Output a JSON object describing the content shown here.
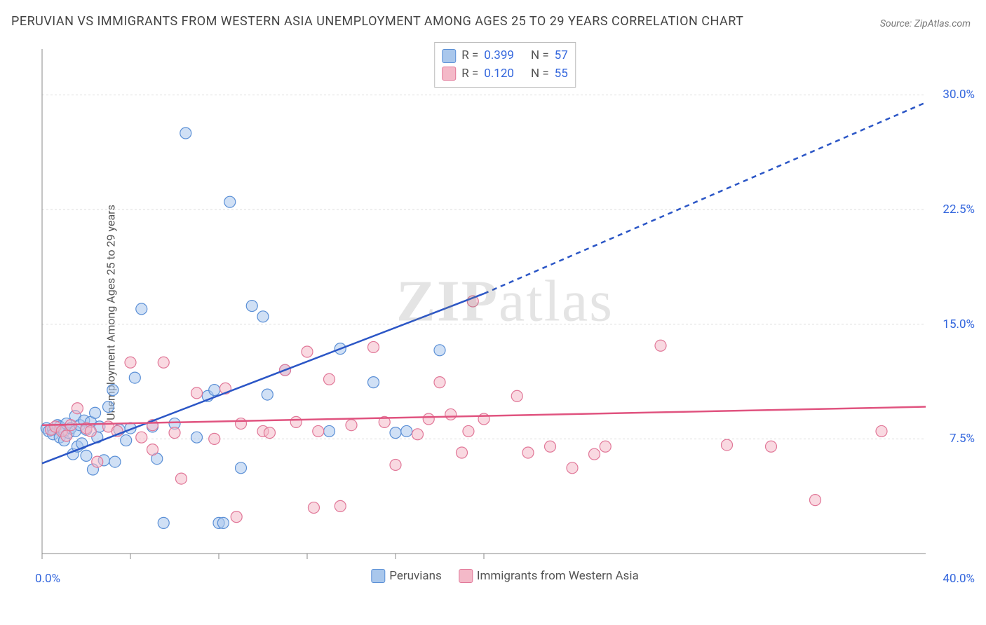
{
  "title": "PERUVIAN VS IMMIGRANTS FROM WESTERN ASIA UNEMPLOYMENT AMONG AGES 25 TO 29 YEARS CORRELATION CHART",
  "source": "Source: ZipAtlas.com",
  "ylabel": "Unemployment Among Ages 25 to 29 years",
  "watermark_bold": "ZIP",
  "watermark_rest": "atlas",
  "chart": {
    "type": "scatter",
    "background_color": "#ffffff",
    "grid_color": "#dddddd",
    "axis_color": "#888888",
    "xlim": [
      0,
      40
    ],
    "ylim": [
      0,
      33
    ],
    "x_axis_label_left": "0.0%",
    "x_axis_label_right": "40.0%",
    "x_ticks": [
      0,
      4,
      8,
      12,
      16,
      20
    ],
    "y_ticks": [
      {
        "pos": 7.5,
        "label": "7.5%"
      },
      {
        "pos": 15.0,
        "label": "15.0%"
      },
      {
        "pos": 22.5,
        "label": "22.5%"
      },
      {
        "pos": 30.0,
        "label": "30.0%"
      }
    ],
    "legend_stats": [
      {
        "swatch_fill": "#a9c7ec",
        "swatch_stroke": "#5a8fd6",
        "r_label": "R =",
        "r_val": "0.399",
        "n_label": "N =",
        "n_val": "57"
      },
      {
        "swatch_fill": "#f4b9c8",
        "swatch_stroke": "#e17798",
        "r_label": "R =",
        "r_val": "0.120",
        "n_label": "N =",
        "n_val": "55"
      }
    ],
    "bottom_legend": [
      {
        "swatch_fill": "#a9c7ec",
        "swatch_stroke": "#5a8fd6",
        "label": "Peruvians"
      },
      {
        "swatch_fill": "#f4b9c8",
        "swatch_stroke": "#e17798",
        "label": "Immigrants from Western Asia"
      }
    ],
    "series": [
      {
        "name": "Peruvians",
        "marker_fill": "rgba(169,199,236,0.55)",
        "marker_stroke": "#5a8fd6",
        "marker_radius": 8,
        "trend_color": "#2b56c6",
        "trend_width": 2.5,
        "trend_solid": {
          "x1": 0,
          "y1": 5.9,
          "x2": 20,
          "y2": 17.0
        },
        "trend_dash": {
          "x1": 20,
          "y1": 17.0,
          "x2": 40,
          "y2": 29.5
        },
        "points": [
          [
            0.2,
            8.2
          ],
          [
            0.3,
            8.0
          ],
          [
            0.5,
            8.1
          ],
          [
            0.5,
            7.8
          ],
          [
            0.7,
            8.4
          ],
          [
            0.8,
            7.6
          ],
          [
            0.8,
            8.3
          ],
          [
            1.0,
            8.0
          ],
          [
            1.0,
            7.4
          ],
          [
            1.1,
            8.5
          ],
          [
            1.2,
            7.9
          ],
          [
            1.3,
            8.2
          ],
          [
            1.4,
            6.5
          ],
          [
            1.5,
            8.0
          ],
          [
            1.5,
            9.0
          ],
          [
            1.6,
            7.0
          ],
          [
            1.7,
            8.4
          ],
          [
            1.8,
            7.2
          ],
          [
            1.9,
            8.7
          ],
          [
            2.0,
            8.1
          ],
          [
            2.0,
            6.4
          ],
          [
            2.2,
            8.6
          ],
          [
            2.3,
            5.5
          ],
          [
            2.4,
            9.2
          ],
          [
            2.5,
            7.6
          ],
          [
            2.6,
            8.3
          ],
          [
            2.8,
            6.1
          ],
          [
            3.0,
            9.6
          ],
          [
            3.2,
            10.7
          ],
          [
            3.3,
            6.0
          ],
          [
            3.5,
            8.1
          ],
          [
            3.8,
            7.4
          ],
          [
            4.0,
            8.2
          ],
          [
            4.2,
            11.5
          ],
          [
            4.5,
            16.0
          ],
          [
            5.0,
            8.3
          ],
          [
            5.2,
            6.2
          ],
          [
            5.5,
            2.0
          ],
          [
            6.0,
            8.5
          ],
          [
            6.5,
            27.5
          ],
          [
            7.0,
            7.6
          ],
          [
            7.5,
            10.3
          ],
          [
            7.8,
            10.7
          ],
          [
            8.0,
            2.0
          ],
          [
            8.2,
            2.0
          ],
          [
            8.5,
            23.0
          ],
          [
            9.0,
            5.6
          ],
          [
            9.5,
            16.2
          ],
          [
            10.0,
            15.5
          ],
          [
            10.2,
            10.4
          ],
          [
            11.0,
            12.0
          ],
          [
            13.0,
            8.0
          ],
          [
            13.5,
            13.4
          ],
          [
            15.0,
            11.2
          ],
          [
            16.0,
            7.9
          ],
          [
            16.5,
            8.0
          ],
          [
            18.0,
            13.3
          ]
        ]
      },
      {
        "name": "Immigrants from Western Asia",
        "marker_fill": "rgba(244,185,200,0.55)",
        "marker_stroke": "#e17798",
        "marker_radius": 8,
        "trend_color": "#e0537f",
        "trend_width": 2.5,
        "trend_solid": {
          "x1": 0,
          "y1": 8.4,
          "x2": 40,
          "y2": 9.6
        },
        "points": [
          [
            0.4,
            8.1
          ],
          [
            0.6,
            8.3
          ],
          [
            0.9,
            8.0
          ],
          [
            1.1,
            7.7
          ],
          [
            1.3,
            8.4
          ],
          [
            1.6,
            9.5
          ],
          [
            2.0,
            8.2
          ],
          [
            2.2,
            8.0
          ],
          [
            2.5,
            6.0
          ],
          [
            3.0,
            8.3
          ],
          [
            3.4,
            8.0
          ],
          [
            4.0,
            12.5
          ],
          [
            4.5,
            7.6
          ],
          [
            5.0,
            6.8
          ],
          [
            5.0,
            8.4
          ],
          [
            5.5,
            12.5
          ],
          [
            6.0,
            7.9
          ],
          [
            6.3,
            4.9
          ],
          [
            7.0,
            10.5
          ],
          [
            7.8,
            7.5
          ],
          [
            8.3,
            10.8
          ],
          [
            8.8,
            2.4
          ],
          [
            9.0,
            8.5
          ],
          [
            10.0,
            8.0
          ],
          [
            10.3,
            7.9
          ],
          [
            11.0,
            12.0
          ],
          [
            11.5,
            8.6
          ],
          [
            12.0,
            13.2
          ],
          [
            12.3,
            3.0
          ],
          [
            12.5,
            8.0
          ],
          [
            13.0,
            11.4
          ],
          [
            13.5,
            3.1
          ],
          [
            14.0,
            8.4
          ],
          [
            15.0,
            13.5
          ],
          [
            15.5,
            8.6
          ],
          [
            16.0,
            5.8
          ],
          [
            17.0,
            7.8
          ],
          [
            17.5,
            8.8
          ],
          [
            18.0,
            11.2
          ],
          [
            18.5,
            9.1
          ],
          [
            19.0,
            6.6
          ],
          [
            19.3,
            8.0
          ],
          [
            19.5,
            16.5
          ],
          [
            20.0,
            8.8
          ],
          [
            21.5,
            10.3
          ],
          [
            22.0,
            6.6
          ],
          [
            23.0,
            7.0
          ],
          [
            24.0,
            5.6
          ],
          [
            25.0,
            6.5
          ],
          [
            25.5,
            7.0
          ],
          [
            28.0,
            13.6
          ],
          [
            31.0,
            7.1
          ],
          [
            33.0,
            7.0
          ],
          [
            35.0,
            3.5
          ],
          [
            38.0,
            8.0
          ]
        ]
      }
    ]
  }
}
